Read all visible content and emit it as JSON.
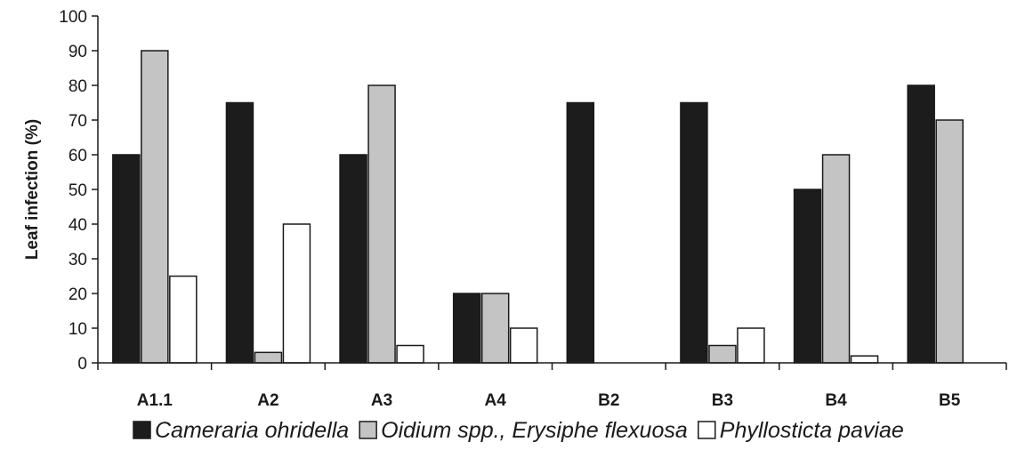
{
  "chart_data": {
    "type": "bar",
    "title": "",
    "xlabel": "",
    "ylabel": "Leaf infection (%)",
    "ylim": [
      0,
      100
    ],
    "yticks": [
      0,
      10,
      20,
      30,
      40,
      50,
      60,
      70,
      80,
      90,
      100
    ],
    "grid": false,
    "legend_position": "bottom",
    "categories": [
      "A1.1",
      "A2",
      "A3",
      "A4",
      "B2",
      "B3",
      "B4",
      "B5"
    ],
    "series": [
      {
        "name": "Cameraria ohridella",
        "color": "#1c1c1c",
        "values": [
          60,
          75,
          60,
          20,
          75,
          75,
          50,
          80
        ]
      },
      {
        "name": "Oidium spp., Erysiphe flexuosa",
        "color": "#c4c4c4",
        "values": [
          90,
          3,
          80,
          20,
          0,
          5,
          60,
          70
        ]
      },
      {
        "name": "Phyllosticta paviae",
        "color": "#ffffff",
        "values": [
          25,
          40,
          5,
          10,
          0,
          10,
          2,
          0
        ]
      }
    ]
  }
}
